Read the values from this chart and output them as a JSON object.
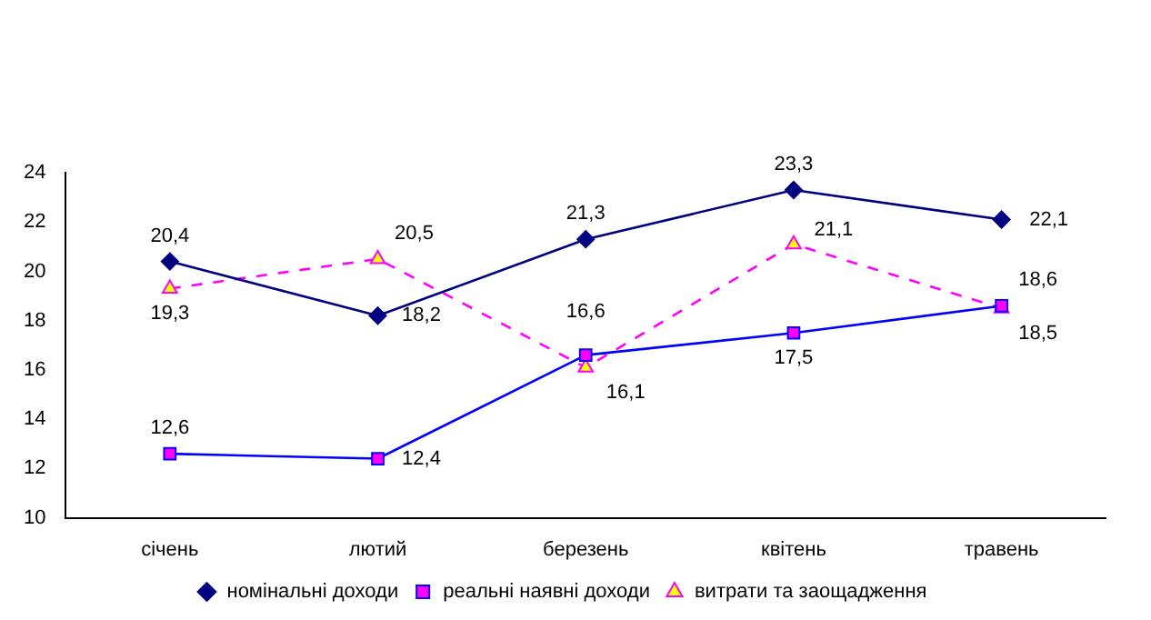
{
  "chart_data": {
    "type": "line",
    "categories": [
      "січень",
      "лютий",
      "березень",
      "квітень",
      "травень"
    ],
    "series": [
      {
        "name": "номінальні доходи",
        "color": "#000080",
        "marker": "diamond",
        "line_style": "solid",
        "values": [
          20.4,
          18.2,
          21.3,
          23.3,
          22.1
        ],
        "value_labels": [
          "20,4",
          "18,2",
          "21,3",
          "23,3",
          "22,1"
        ]
      },
      {
        "name": "реальні наявні доходи",
        "color": "#0000ff",
        "marker": "square",
        "line_style": "solid",
        "values": [
          12.6,
          12.4,
          16.6,
          17.5,
          18.6
        ],
        "value_labels": [
          "12,6",
          "12,4",
          "16,6",
          "17,5",
          "18,6"
        ]
      },
      {
        "name": "витрати та заощадження",
        "color": "#ff00ff",
        "marker": "triangle",
        "line_style": "dashed",
        "values": [
          19.3,
          20.5,
          16.1,
          21.1,
          18.5
        ],
        "value_labels": [
          "19,3",
          "20,5",
          "16,1",
          "21,1",
          "18,5"
        ]
      }
    ],
    "ylim": [
      10,
      24
    ],
    "yticks": [
      10,
      12,
      14,
      16,
      18,
      20,
      22,
      24
    ],
    "grid": false,
    "legend": "bottom"
  }
}
